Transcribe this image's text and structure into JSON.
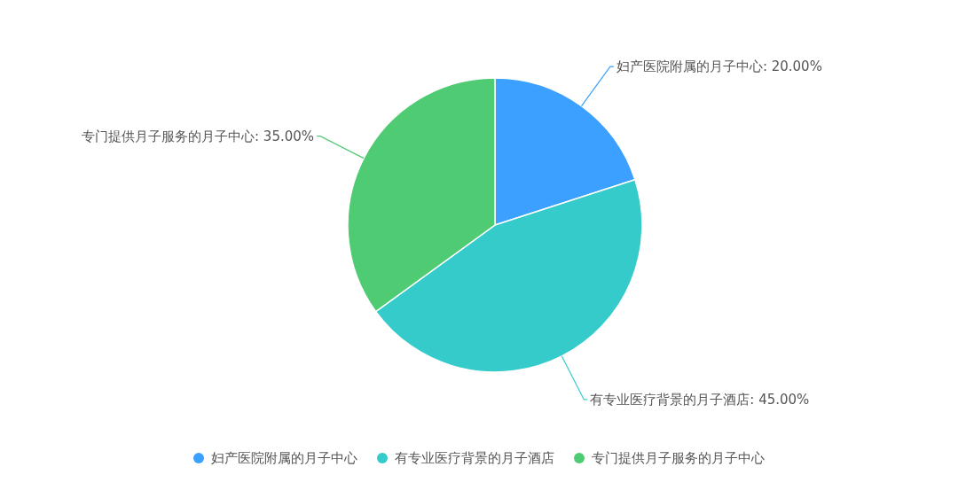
{
  "chart_data": {
    "type": "pie",
    "categories": [
      "妇产医院附属的月子中心",
      "有专业医疗背景的月子酒店",
      "专门提供月子服务的月子中心"
    ],
    "values": [
      20,
      45,
      35
    ],
    "value_labels": [
      "妇产医院附属的月子中心: 20.00%",
      "有专业医疗背景的月子酒店: 45.00%",
      "专门提供月子服务的月子中心: 35.00%"
    ],
    "colors": [
      "#3ba0ff",
      "#36cbcb",
      "#4ecb73"
    ],
    "legend": "bottom"
  }
}
